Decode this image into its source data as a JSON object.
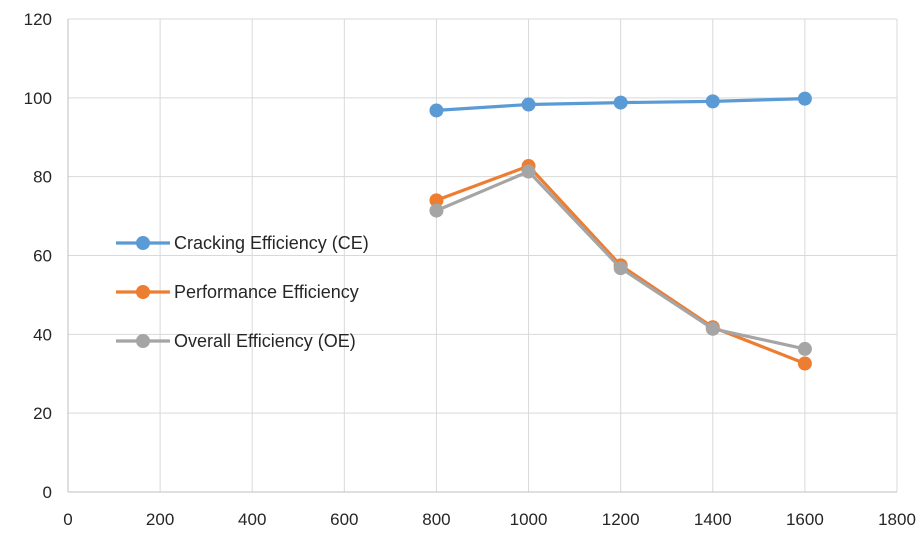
{
  "chart_data": {
    "type": "scatter",
    "xlim": [
      0,
      1800
    ],
    "ylim": [
      0,
      120
    ],
    "x_ticks": [
      0,
      200,
      400,
      600,
      800,
      1000,
      1200,
      1400,
      1600,
      1800
    ],
    "y_ticks": [
      0,
      20,
      40,
      60,
      80,
      100,
      120
    ],
    "grid": true,
    "legend_position": "left-middle",
    "series": [
      {
        "name": "Cracking Efficiency (CE)",
        "color": "#5b9bd5",
        "x": [
          800,
          1000,
          1200,
          1400,
          1600
        ],
        "y": [
          96.8,
          98.3,
          98.8,
          99.1,
          99.8
        ]
      },
      {
        "name": "Performance Efficiency",
        "color": "#ed7d31",
        "x": [
          800,
          1000,
          1200,
          1400,
          1600
        ],
        "y": [
          74.0,
          82.7,
          57.5,
          41.8,
          32.6
        ]
      },
      {
        "name": "Overall Efficiency (OE)",
        "color": "#a5a5a5",
        "x": [
          800,
          1000,
          1200,
          1400,
          1600
        ],
        "y": [
          71.4,
          81.3,
          56.8,
          41.4,
          36.3
        ]
      }
    ]
  }
}
